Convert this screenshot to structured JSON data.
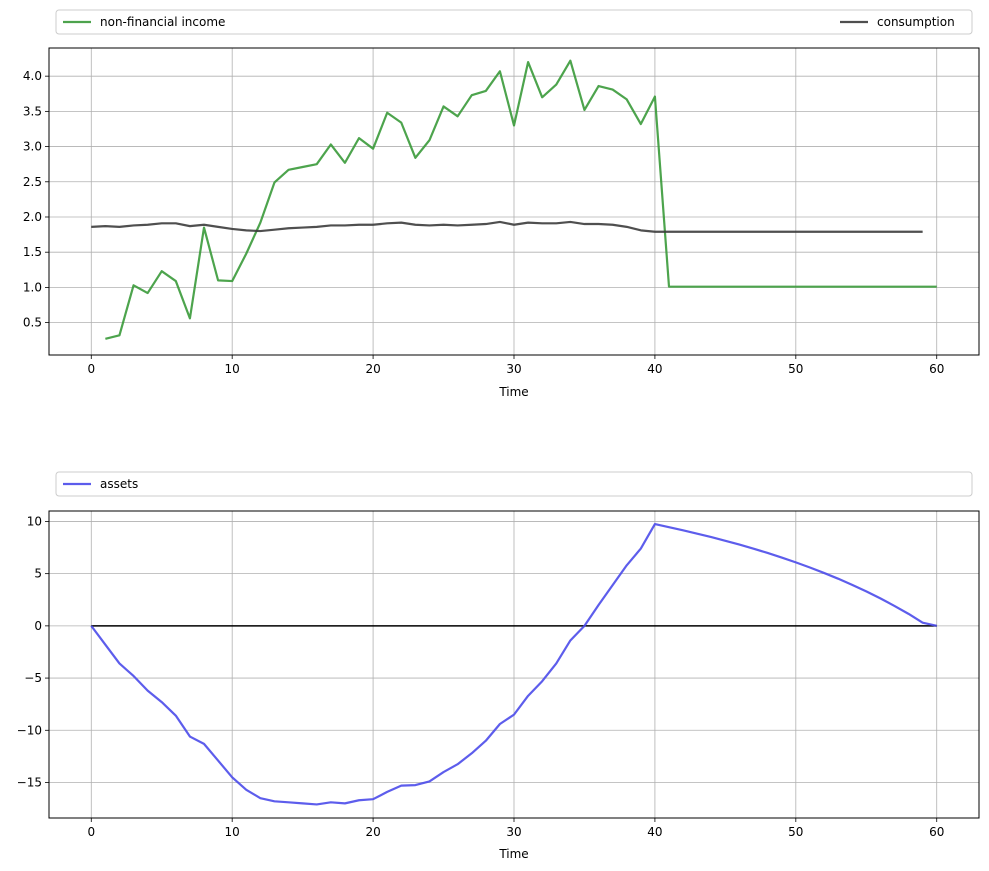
{
  "chart_data": [
    {
      "type": "line",
      "xlabel": "Time",
      "ylabel": "",
      "xlim": [
        -3,
        63
      ],
      "ylim": [
        0.04,
        4.4
      ],
      "xticks": [
        0,
        10,
        20,
        30,
        40,
        50,
        60
      ],
      "yticks": [
        0.5,
        1.0,
        1.5,
        2.0,
        2.5,
        3.0,
        3.5,
        4.0
      ],
      "ytick_labels": [
        "0.5",
        "1.0",
        "1.5",
        "2.0",
        "2.5",
        "3.0",
        "3.5",
        "4.0"
      ],
      "grid": true,
      "legend_placement": "above, expanded across top",
      "series": [
        {
          "name": "non-financial income",
          "color": "#3a9a3a",
          "x_start": 1,
          "values": [
            0.27,
            0.32,
            1.03,
            0.92,
            1.23,
            1.09,
            0.56,
            1.85,
            1.1,
            1.09,
            1.48,
            1.92,
            2.49,
            2.67,
            2.71,
            2.75,
            3.03,
            2.77,
            3.12,
            2.97,
            3.48,
            3.34,
            2.84,
            3.09,
            3.57,
            3.43,
            3.73,
            3.79,
            4.07,
            3.3,
            4.2,
            3.7,
            3.88,
            4.22,
            3.52,
            3.86,
            3.81,
            3.67,
            3.32,
            3.71,
            1.01,
            1.01,
            1.01,
            1.01,
            1.01,
            1.01,
            1.01,
            1.01,
            1.01,
            1.01,
            1.01,
            1.01,
            1.01,
            1.01,
            1.01,
            1.01,
            1.01,
            1.01,
            1.01,
            1.01
          ]
        },
        {
          "name": "consumption",
          "color": "#3c3c3c",
          "x_start": 0,
          "values": [
            1.86,
            1.87,
            1.86,
            1.88,
            1.89,
            1.91,
            1.91,
            1.87,
            1.89,
            1.86,
            1.83,
            1.81,
            1.8,
            1.82,
            1.84,
            1.85,
            1.86,
            1.88,
            1.88,
            1.89,
            1.89,
            1.91,
            1.92,
            1.89,
            1.88,
            1.89,
            1.88,
            1.89,
            1.9,
            1.93,
            1.89,
            1.92,
            1.91,
            1.91,
            1.93,
            1.9,
            1.9,
            1.89,
            1.86,
            1.81,
            1.79,
            1.79,
            1.79,
            1.79,
            1.79,
            1.79,
            1.79,
            1.79,
            1.79,
            1.79,
            1.79,
            1.79,
            1.79,
            1.79,
            1.79,
            1.79,
            1.79,
            1.79,
            1.79,
            1.79
          ]
        }
      ]
    },
    {
      "type": "line",
      "xlabel": "Time",
      "ylabel": "",
      "xlim": [
        -3,
        63
      ],
      "ylim": [
        -18.4,
        11.0
      ],
      "xticks": [
        0,
        10,
        20,
        30,
        40,
        50,
        60
      ],
      "yticks": [
        -15,
        -10,
        -5,
        0,
        5,
        10
      ],
      "ytick_labels": [
        "−15",
        "−10",
        "−5",
        "0",
        "5",
        "10"
      ],
      "grid": true,
      "legend_placement": "above, expanded across top",
      "reference_line": {
        "y": 0,
        "x_from": 0,
        "x_to": 60,
        "color": "#000000"
      },
      "series": [
        {
          "name": "assets",
          "color": "#4b4bea",
          "x_start": 0,
          "values": [
            0.0,
            -1.8,
            -3.6,
            -4.8,
            -6.2,
            -7.3,
            -8.6,
            -10.6,
            -11.3,
            -12.9,
            -14.5,
            -15.7,
            -16.5,
            -16.8,
            -16.9,
            -17.0,
            -17.1,
            -16.9,
            -17.0,
            -16.7,
            -16.6,
            -15.9,
            -15.3,
            -15.25,
            -14.9,
            -14.0,
            -13.25,
            -12.2,
            -11.0,
            -9.4,
            -8.5,
            -6.7,
            -5.3,
            -3.6,
            -1.4,
            0.0,
            2.0,
            3.9,
            5.8,
            7.4,
            9.75,
            9.45,
            9.15,
            8.83,
            8.5,
            8.15,
            7.78,
            7.39,
            6.98,
            6.54,
            6.08,
            5.59,
            5.07,
            4.52,
            3.93,
            3.3,
            2.63,
            1.91,
            1.15,
            0.3,
            0.0
          ]
        }
      ]
    }
  ]
}
